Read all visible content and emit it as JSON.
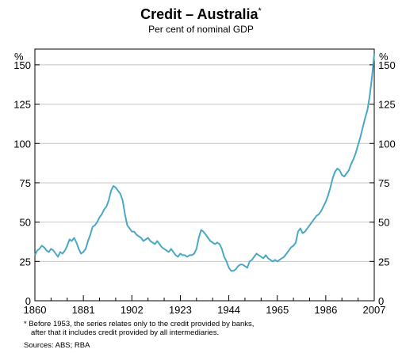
{
  "chart_data": {
    "type": "line",
    "title": "Credit – Australia",
    "title_marker": "*",
    "subtitle": "Per cent of nominal GDP",
    "y_unit_left": "%",
    "y_unit_right": "%",
    "ylim": [
      0,
      160
    ],
    "yticks": [
      0,
      25,
      50,
      75,
      100,
      125,
      150
    ],
    "xlim": [
      1860,
      2007
    ],
    "xticks": [
      1860,
      1881,
      1902,
      1923,
      1944,
      1965,
      1986,
      2007
    ],
    "grid": true,
    "line_color": "#4aa8c4",
    "series": [
      {
        "x": [
          1860,
          1861,
          1862,
          1863,
          1864,
          1865,
          1866,
          1867,
          1868,
          1869,
          1870,
          1871,
          1872,
          1873,
          1874,
          1875,
          1876,
          1877,
          1878,
          1879,
          1880,
          1881,
          1882,
          1883,
          1884,
          1885,
          1886,
          1887,
          1888,
          1889,
          1890,
          1891,
          1892,
          1893,
          1894,
          1895,
          1896,
          1897,
          1898,
          1899,
          1900,
          1901,
          1902,
          1903,
          1904,
          1905,
          1906,
          1907,
          1908,
          1909,
          1910,
          1911,
          1912,
          1913,
          1914,
          1915,
          1916,
          1917,
          1918,
          1919,
          1920,
          1921,
          1922,
          1923,
          1924,
          1925,
          1926,
          1927,
          1928,
          1929,
          1930,
          1931,
          1932,
          1933,
          1934,
          1935,
          1936,
          1937,
          1938,
          1939,
          1940,
          1941,
          1942,
          1943,
          1944,
          1945,
          1946,
          1947,
          1948,
          1949,
          1950,
          1951,
          1952,
          1953,
          1954,
          1955,
          1956,
          1957,
          1958,
          1959,
          1960,
          1961,
          1962,
          1963,
          1964,
          1965,
          1966,
          1967,
          1968,
          1969,
          1970,
          1971,
          1972,
          1973,
          1974,
          1975,
          1976,
          1977,
          1978,
          1979,
          1980,
          1981,
          1982,
          1983,
          1984,
          1985,
          1986,
          1987,
          1988,
          1989,
          1990,
          1991,
          1992,
          1993,
          1994,
          1995,
          1996,
          1997,
          1998,
          1999,
          2000,
          2001,
          2002,
          2003,
          2004,
          2005,
          2006,
          2007
        ],
        "y": [
          29,
          32,
          33,
          35,
          34,
          32,
          31,
          33,
          32,
          30,
          28,
          31,
          30,
          32,
          35,
          39,
          38,
          40,
          37,
          33,
          30,
          31,
          33,
          38,
          42,
          47,
          48,
          50,
          53,
          55,
          58,
          60,
          64,
          70,
          73,
          72,
          70,
          68,
          64,
          55,
          48,
          46,
          44,
          44,
          42,
          41,
          40,
          38,
          39,
          40,
          38,
          37,
          36,
          38,
          36,
          34,
          33,
          32,
          31,
          33,
          31,
          29,
          28,
          30,
          29,
          29,
          28,
          29,
          29,
          30,
          33,
          40,
          45,
          44,
          42,
          40,
          38,
          37,
          36,
          37,
          36,
          33,
          28,
          25,
          21,
          19,
          19,
          20,
          22,
          23,
          23,
          22,
          21,
          25,
          26,
          28,
          30,
          29,
          28,
          27,
          29,
          27,
          26,
          25,
          26,
          25,
          26,
          27,
          28,
          30,
          32,
          34,
          35,
          37,
          44,
          46,
          43,
          44,
          46,
          48,
          50,
          52,
          54,
          55,
          57,
          60,
          63,
          67,
          72,
          78,
          82,
          84,
          83,
          80,
          79,
          81,
          83,
          87,
          90,
          94,
          99,
          104,
          110,
          116,
          121,
          130,
          142,
          157
        ]
      }
    ],
    "footnote_lines": [
      "* Before 1953, the series relates only to the credit provided by banks,",
      "after that it includes credit provided by all intermediaries."
    ],
    "source": "Sources: ABS; RBA"
  }
}
